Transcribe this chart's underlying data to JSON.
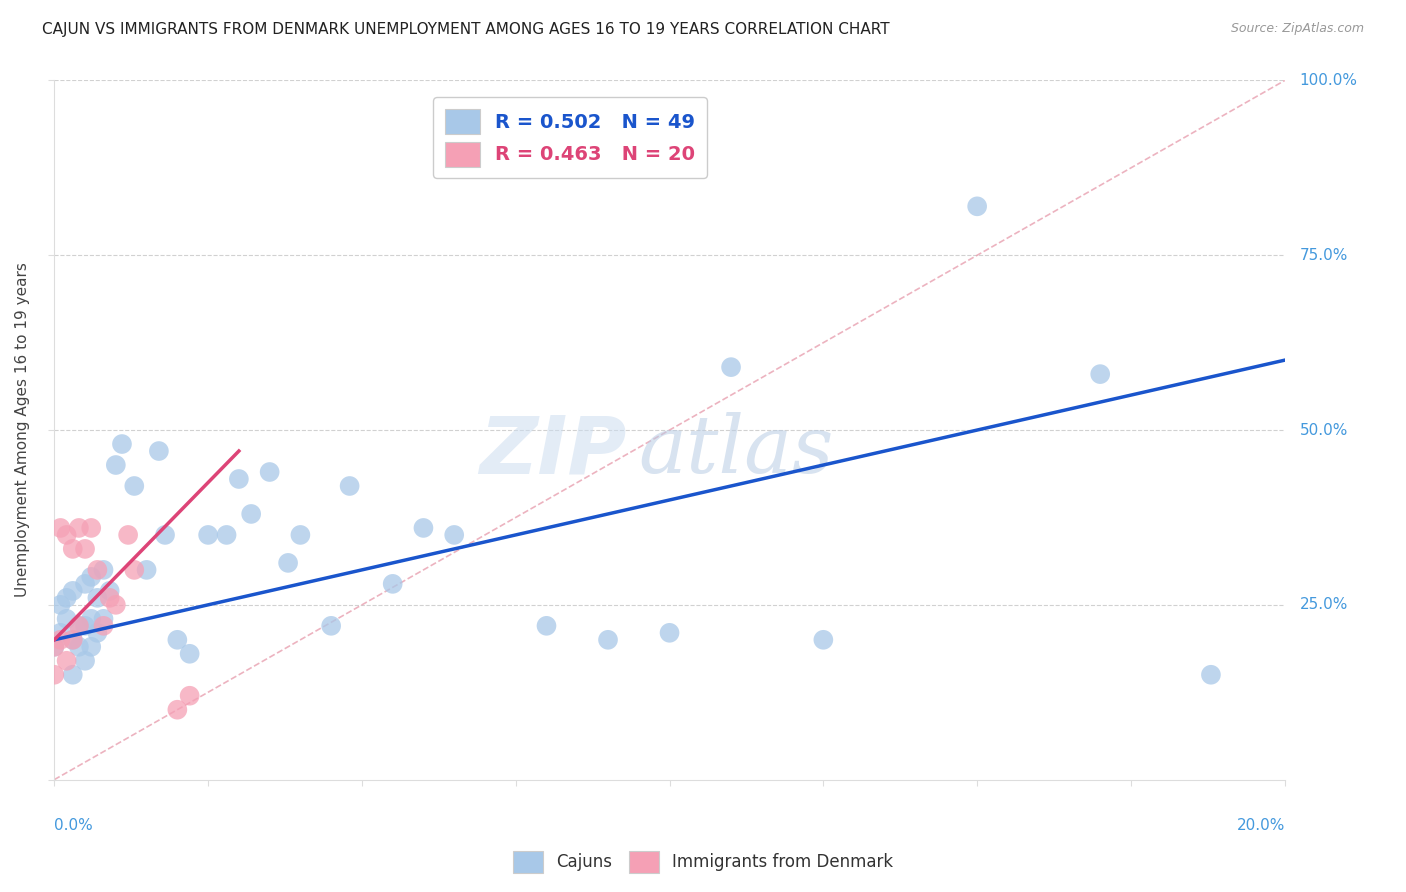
{
  "title": "CAJUN VS IMMIGRANTS FROM DENMARK UNEMPLOYMENT AMONG AGES 16 TO 19 YEARS CORRELATION CHART",
  "source": "Source: ZipAtlas.com",
  "ylabel": "Unemployment Among Ages 16 to 19 years",
  "legend_cajun_label": "R = 0.502   N = 49",
  "legend_denmark_label": "R = 0.463   N = 20",
  "legend_bottom_cajun": "Cajuns",
  "legend_bottom_denmark": "Immigrants from Denmark",
  "cajun_color": "#a8c8e8",
  "cajun_line_color": "#1a55cc",
  "denmark_color": "#f5a0b5",
  "denmark_line_color": "#dd4477",
  "xlim": [
    0.0,
    0.2
  ],
  "ylim": [
    0.0,
    1.0
  ],
  "background_color": "#ffffff",
  "grid_color": "#cccccc",
  "title_color": "#222222",
  "axis_label_color": "#4499dd",
  "tick_label_color": "#4499dd",
  "cajun_line_x0": 0.0,
  "cajun_line_y0": 0.2,
  "cajun_line_x1": 0.2,
  "cajun_line_y1": 0.6,
  "denmark_line_x0": 0.0,
  "denmark_line_y0": 0.2,
  "denmark_line_x1": 0.03,
  "denmark_line_y1": 0.47,
  "cajun_pts_x": [
    0.0,
    0.001,
    0.001,
    0.002,
    0.002,
    0.003,
    0.003,
    0.003,
    0.004,
    0.004,
    0.005,
    0.005,
    0.005,
    0.006,
    0.006,
    0.006,
    0.007,
    0.007,
    0.008,
    0.008,
    0.009,
    0.01,
    0.011,
    0.013,
    0.015,
    0.017,
    0.018,
    0.02,
    0.022,
    0.025,
    0.028,
    0.03,
    0.032,
    0.035,
    0.038,
    0.04,
    0.045,
    0.048,
    0.055,
    0.06,
    0.065,
    0.08,
    0.09,
    0.1,
    0.11,
    0.125,
    0.15,
    0.17,
    0.188
  ],
  "cajun_pts_y": [
    0.19,
    0.21,
    0.25,
    0.23,
    0.26,
    0.2,
    0.27,
    0.15,
    0.22,
    0.19,
    0.28,
    0.22,
    0.17,
    0.29,
    0.23,
    0.19,
    0.26,
    0.21,
    0.3,
    0.23,
    0.27,
    0.45,
    0.48,
    0.42,
    0.3,
    0.47,
    0.35,
    0.2,
    0.18,
    0.35,
    0.35,
    0.43,
    0.38,
    0.44,
    0.31,
    0.35,
    0.22,
    0.42,
    0.28,
    0.36,
    0.35,
    0.22,
    0.2,
    0.21,
    0.59,
    0.2,
    0.82,
    0.58,
    0.15
  ],
  "denmark_pts_x": [
    0.0,
    0.0,
    0.001,
    0.001,
    0.002,
    0.002,
    0.003,
    0.003,
    0.004,
    0.004,
    0.005,
    0.006,
    0.007,
    0.008,
    0.009,
    0.01,
    0.012,
    0.013,
    0.02,
    0.022
  ],
  "denmark_pts_y": [
    0.19,
    0.15,
    0.36,
    0.2,
    0.35,
    0.17,
    0.33,
    0.2,
    0.36,
    0.22,
    0.33,
    0.36,
    0.3,
    0.22,
    0.26,
    0.25,
    0.35,
    0.3,
    0.1,
    0.12
  ]
}
